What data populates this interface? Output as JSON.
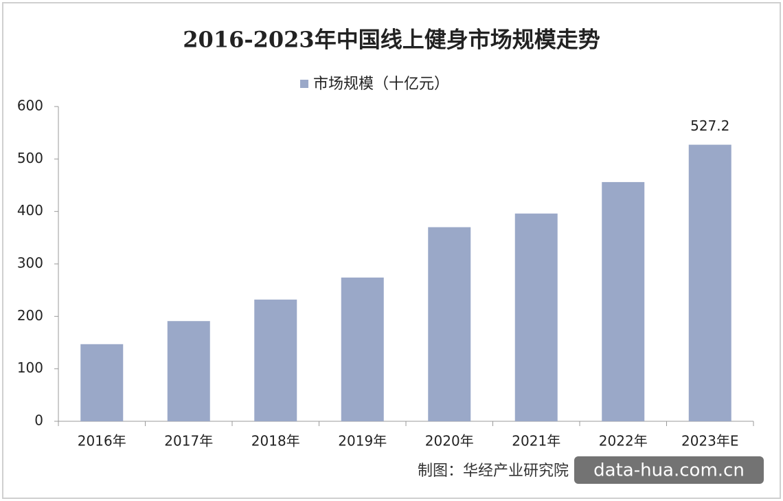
{
  "chart_data": {
    "type": "bar",
    "title": "2016-2023年中国线上健身市场规模走势",
    "legend_label": "市场规模（十亿元）",
    "categories": [
      "2016年",
      "2017年",
      "2018年",
      "2019年",
      "2020年",
      "2021年",
      "2022年",
      "2023年E"
    ],
    "values": [
      147,
      191,
      232,
      274,
      370,
      396,
      456,
      527.2
    ],
    "label_indices": [
      7
    ],
    "color": "#9aa8c8",
    "ylim": [
      0,
      600
    ],
    "yticks": [
      0,
      100,
      200,
      300,
      400,
      500,
      600
    ],
    "grid": false,
    "source": "制图：华经产业研究院",
    "watermark": "data-hua.com.cn"
  }
}
